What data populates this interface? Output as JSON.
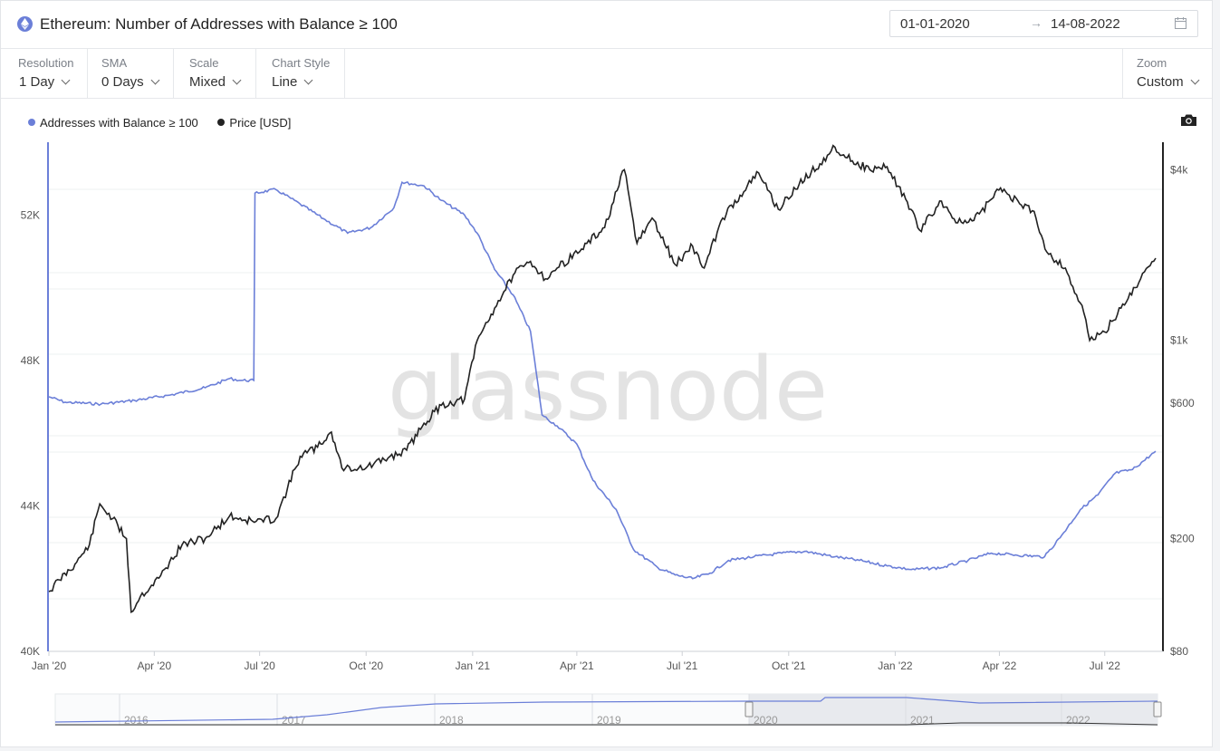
{
  "header": {
    "title": "Ethereum: Number of Addresses with Balance ≥ 100",
    "date_from": "01-01-2020",
    "date_arrow": "→",
    "date_to": "14-08-2022"
  },
  "toolbar": {
    "resolution": {
      "label": "Resolution",
      "value": "1 Day"
    },
    "sma": {
      "label": "SMA",
      "value": "0 Days"
    },
    "scale": {
      "label": "Scale",
      "value": "Mixed"
    },
    "chart_style": {
      "label": "Chart Style",
      "value": "Line"
    },
    "zoom": {
      "label": "Zoom",
      "value": "Custom"
    }
  },
  "watermark": "glassnode",
  "icons": {
    "camera": "camera-icon",
    "calendar": "calendar-icon",
    "logo": "ethereum-logo-icon"
  },
  "chart_data": {
    "type": "line",
    "title": "Ethereum: Number of Addresses with Balance ≥ 100",
    "legend_position": "top-left",
    "grid": true,
    "x_ticks": [
      "Jan '20",
      "Apr '20",
      "Jul '20",
      "Oct '20",
      "Jan '21",
      "Apr '21",
      "Jul '21",
      "Oct '21",
      "Jan '22",
      "Apr '22",
      "Jul '22"
    ],
    "y_left": {
      "range": [
        40000,
        54000
      ],
      "ticks": [
        40000,
        44000,
        48000,
        52000
      ],
      "tick_labels": [
        "40K",
        "44K",
        "48K",
        "52K"
      ],
      "scale": "linear"
    },
    "y_right": {
      "range": [
        80,
        5000
      ],
      "ticks": [
        80,
        200,
        600,
        1000,
        4000
      ],
      "tick_labels": [
        "$80",
        "$200",
        "$600",
        "$1k",
        "$4k"
      ],
      "scale": "log"
    },
    "series": [
      {
        "name": "Addresses with Balance ≥ 100",
        "axis": "left",
        "color": "#6b7fd8",
        "points": [
          [
            "2020-01-01",
            47000
          ],
          [
            "2020-01-15",
            46850
          ],
          [
            "2020-02-15",
            46800
          ],
          [
            "2020-03-15",
            46900
          ],
          [
            "2020-04-15",
            47050
          ],
          [
            "2020-05-15",
            47250
          ],
          [
            "2020-06-05",
            47500
          ],
          [
            "2020-06-15",
            47450
          ],
          [
            "2020-06-26",
            47450
          ],
          [
            "2020-06-27",
            52600
          ],
          [
            "2020-07-15",
            52700
          ],
          [
            "2020-08-05",
            52300
          ],
          [
            "2020-08-25",
            51900
          ],
          [
            "2020-09-15",
            51500
          ],
          [
            "2020-10-05",
            51650
          ],
          [
            "2020-10-25",
            52200
          ],
          [
            "2020-11-01",
            52900
          ],
          [
            "2020-11-20",
            52800
          ],
          [
            "2020-12-05",
            52400
          ],
          [
            "2020-12-25",
            52000
          ],
          [
            "2021-01-05",
            51500
          ],
          [
            "2021-01-20",
            50500
          ],
          [
            "2021-02-05",
            49800
          ],
          [
            "2021-02-20",
            48800
          ],
          [
            "2021-03-02",
            46500
          ],
          [
            "2021-03-15",
            46200
          ],
          [
            "2021-04-01",
            45700
          ],
          [
            "2021-04-15",
            44700
          ],
          [
            "2021-05-05",
            43900
          ],
          [
            "2021-05-20",
            42800
          ],
          [
            "2021-06-10",
            42300
          ],
          [
            "2021-06-25",
            42100
          ],
          [
            "2021-07-10",
            42000
          ],
          [
            "2021-07-25",
            42150
          ],
          [
            "2021-08-10",
            42500
          ],
          [
            "2021-09-01",
            42600
          ],
          [
            "2021-09-25",
            42700
          ],
          [
            "2021-10-15",
            42750
          ],
          [
            "2021-11-10",
            42600
          ],
          [
            "2021-12-01",
            42500
          ],
          [
            "2021-12-25",
            42350
          ],
          [
            "2022-01-15",
            42250
          ],
          [
            "2022-02-10",
            42300
          ],
          [
            "2022-03-05",
            42500
          ],
          [
            "2022-03-25",
            42700
          ],
          [
            "2022-04-15",
            42650
          ],
          [
            "2022-05-10",
            42600
          ],
          [
            "2022-05-25",
            43200
          ],
          [
            "2022-06-10",
            43900
          ],
          [
            "2022-06-25",
            44300
          ],
          [
            "2022-07-10",
            44900
          ],
          [
            "2022-07-25",
            45000
          ],
          [
            "2022-08-14",
            45500
          ]
        ]
      },
      {
        "name": "Price [USD]",
        "axis": "right",
        "color": "#222222",
        "points": [
          [
            "2020-01-01",
            130
          ],
          [
            "2020-01-10",
            143
          ],
          [
            "2020-01-25",
            165
          ],
          [
            "2020-02-05",
            190
          ],
          [
            "2020-02-14",
            265
          ],
          [
            "2020-02-25",
            235
          ],
          [
            "2020-03-08",
            200
          ],
          [
            "2020-03-12",
            110
          ],
          [
            "2020-03-20",
            125
          ],
          [
            "2020-04-05",
            145
          ],
          [
            "2020-04-25",
            190
          ],
          [
            "2020-05-15",
            200
          ],
          [
            "2020-06-05",
            240
          ],
          [
            "2020-06-25",
            230
          ],
          [
            "2020-07-15",
            235
          ],
          [
            "2020-07-25",
            300
          ],
          [
            "2020-08-05",
            390
          ],
          [
            "2020-08-20",
            420
          ],
          [
            "2020-09-01",
            475
          ],
          [
            "2020-09-10",
            355
          ],
          [
            "2020-10-01",
            355
          ],
          [
            "2020-10-20",
            385
          ],
          [
            "2020-11-05",
            410
          ],
          [
            "2020-11-20",
            510
          ],
          [
            "2020-12-05",
            590
          ],
          [
            "2020-12-25",
            620
          ],
          [
            "2021-01-05",
            1000
          ],
          [
            "2021-01-20",
            1300
          ],
          [
            "2021-02-05",
            1700
          ],
          [
            "2021-02-20",
            1900
          ],
          [
            "2021-03-05",
            1650
          ],
          [
            "2021-03-15",
            1800
          ],
          [
            "2021-04-05",
            2100
          ],
          [
            "2021-04-25",
            2500
          ],
          [
            "2021-05-12",
            4000
          ],
          [
            "2021-05-23",
            2200
          ],
          [
            "2021-06-05",
            2700
          ],
          [
            "2021-06-25",
            1850
          ],
          [
            "2021-07-10",
            2150
          ],
          [
            "2021-07-20",
            1800
          ],
          [
            "2021-08-05",
            2700
          ],
          [
            "2021-08-20",
            3250
          ],
          [
            "2021-09-05",
            3900
          ],
          [
            "2021-09-22",
            2900
          ],
          [
            "2021-10-10",
            3550
          ],
          [
            "2021-10-28",
            4200
          ],
          [
            "2021-11-10",
            4800
          ],
          [
            "2021-11-25",
            4300
          ],
          [
            "2021-12-10",
            4000
          ],
          [
            "2021-12-25",
            4100
          ],
          [
            "2022-01-10",
            3150
          ],
          [
            "2022-01-22",
            2450
          ],
          [
            "2022-02-10",
            3100
          ],
          [
            "2022-02-24",
            2600
          ],
          [
            "2022-03-10",
            2650
          ],
          [
            "2022-04-02",
            3450
          ],
          [
            "2022-04-20",
            3000
          ],
          [
            "2022-05-01",
            2850
          ],
          [
            "2022-05-12",
            2050
          ],
          [
            "2022-05-28",
            1800
          ],
          [
            "2022-06-13",
            1250
          ],
          [
            "2022-06-18",
            1000
          ],
          [
            "2022-07-01",
            1070
          ],
          [
            "2022-07-15",
            1300
          ],
          [
            "2022-08-01",
            1650
          ],
          [
            "2022-08-14",
            1950
          ]
        ]
      }
    ]
  }
}
